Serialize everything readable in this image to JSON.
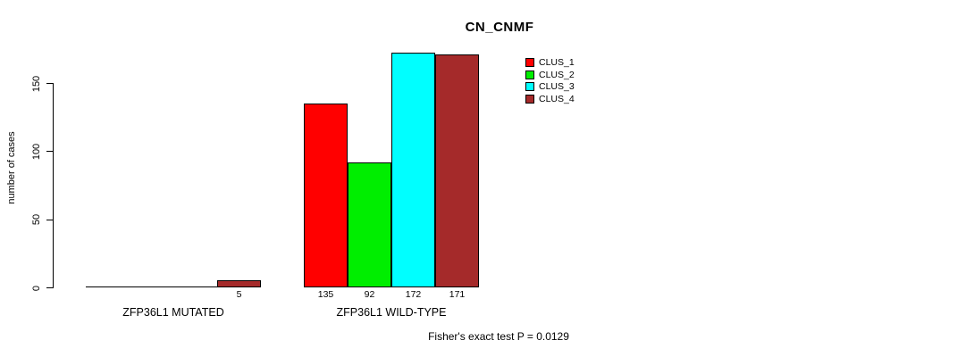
{
  "chart_data": {
    "type": "bar",
    "title": "CN_CNMF",
    "xlabel": "",
    "ylabel": "number of cases",
    "ylim": [
      0,
      150
    ],
    "yticks": [
      "0",
      "50",
      "100",
      "150"
    ],
    "grid": false,
    "legend_position": "top-right",
    "categories": [
      "ZFP36L1 MUTATED",
      "ZFP36L1 WILD-TYPE"
    ],
    "series": [
      {
        "name": "CLUS_1",
        "color": "#ff0000",
        "values": [
          0,
          135
        ]
      },
      {
        "name": "CLUS_2",
        "color": "#00ee00",
        "values": [
          0,
          92
        ]
      },
      {
        "name": "CLUS_3",
        "color": "#00ffff",
        "values": [
          0,
          172
        ]
      },
      {
        "name": "CLUS_4",
        "color": "#a52a2a",
        "values": [
          5,
          171
        ]
      }
    ],
    "bar_value_labels": [
      [
        "",
        "",
        "",
        "5"
      ],
      [
        "135",
        "92",
        "172",
        "171"
      ]
    ],
    "annotation": "Fisher's exact test P = 0.0129"
  },
  "colors": {
    "axis": "#000000",
    "bar_border": "#000000",
    "background": "#ffffff",
    "text": "#000000"
  }
}
